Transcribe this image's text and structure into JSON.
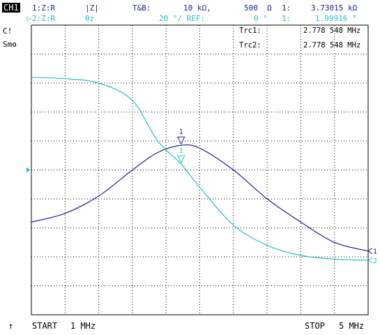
{
  "header": {
    "channel": "CH1",
    "trace1": {
      "id": "1:Z:R",
      "format": "|Z|",
      "scale_label": "T&B:",
      "scale": "10 kΩ,",
      "ref": "500  Ω",
      "marker_no": "1:",
      "marker_value": "3.73015 kΩ"
    },
    "trace2": {
      "id": "2:Z:R",
      "format": "θz",
      "scale": "20 °/ REF:",
      "ref": "0 °",
      "marker_no": "1:",
      "marker_value": "1.99916 °"
    }
  },
  "side_labels": [
    "C!",
    "Smo"
  ],
  "marker_readouts": [
    {
      "label": "Trc1:",
      "value": "2.778 548 MHz"
    },
    {
      "label": "Trc2:",
      "value": "2.778 548 MHz"
    }
  ],
  "footer": {
    "arrow": "↑",
    "start_label": "START",
    "start_value": "1 MHz",
    "stop_label": "STOP",
    "stop_value": "5 MHz"
  },
  "colors": {
    "trace1": "#1b2490",
    "trace2": "#25c0c8",
    "grid": "#000000"
  },
  "chart_data": {
    "type": "line",
    "x_unit": "MHz",
    "xlim": [
      1,
      5
    ],
    "grid_divisions": {
      "x": 10,
      "y": 10
    },
    "series": [
      {
        "name": "Trc1",
        "end_marker": "1",
        "x": [
          1.0,
          1.4,
          1.8,
          2.2,
          2.5,
          2.778548,
          3.0,
          3.4,
          3.8,
          4.2,
          4.6,
          5.0
        ],
        "values": [
          3.2,
          3.5,
          4.1,
          5.0,
          5.6,
          5.85,
          5.75,
          5.0,
          4.0,
          3.2,
          2.5,
          2.2
        ]
      },
      {
        "name": "Trc2",
        "end_marker": "2",
        "x": [
          1.0,
          1.4,
          1.8,
          2.2,
          2.5,
          2.778548,
          3.0,
          3.4,
          3.8,
          4.2,
          4.6,
          5.0
        ],
        "values": [
          8.2,
          8.15,
          8.0,
          7.4,
          6.0,
          5.2,
          4.4,
          3.1,
          2.4,
          2.05,
          1.92,
          1.88
        ]
      }
    ],
    "markers": [
      {
        "trace": "Trc1",
        "label": "1",
        "x": 2.778548,
        "y": 5.85
      },
      {
        "trace": "Trc2",
        "label": "1",
        "x": 2.778548,
        "y": 5.2
      }
    ],
    "ref_level_division": 5
  }
}
